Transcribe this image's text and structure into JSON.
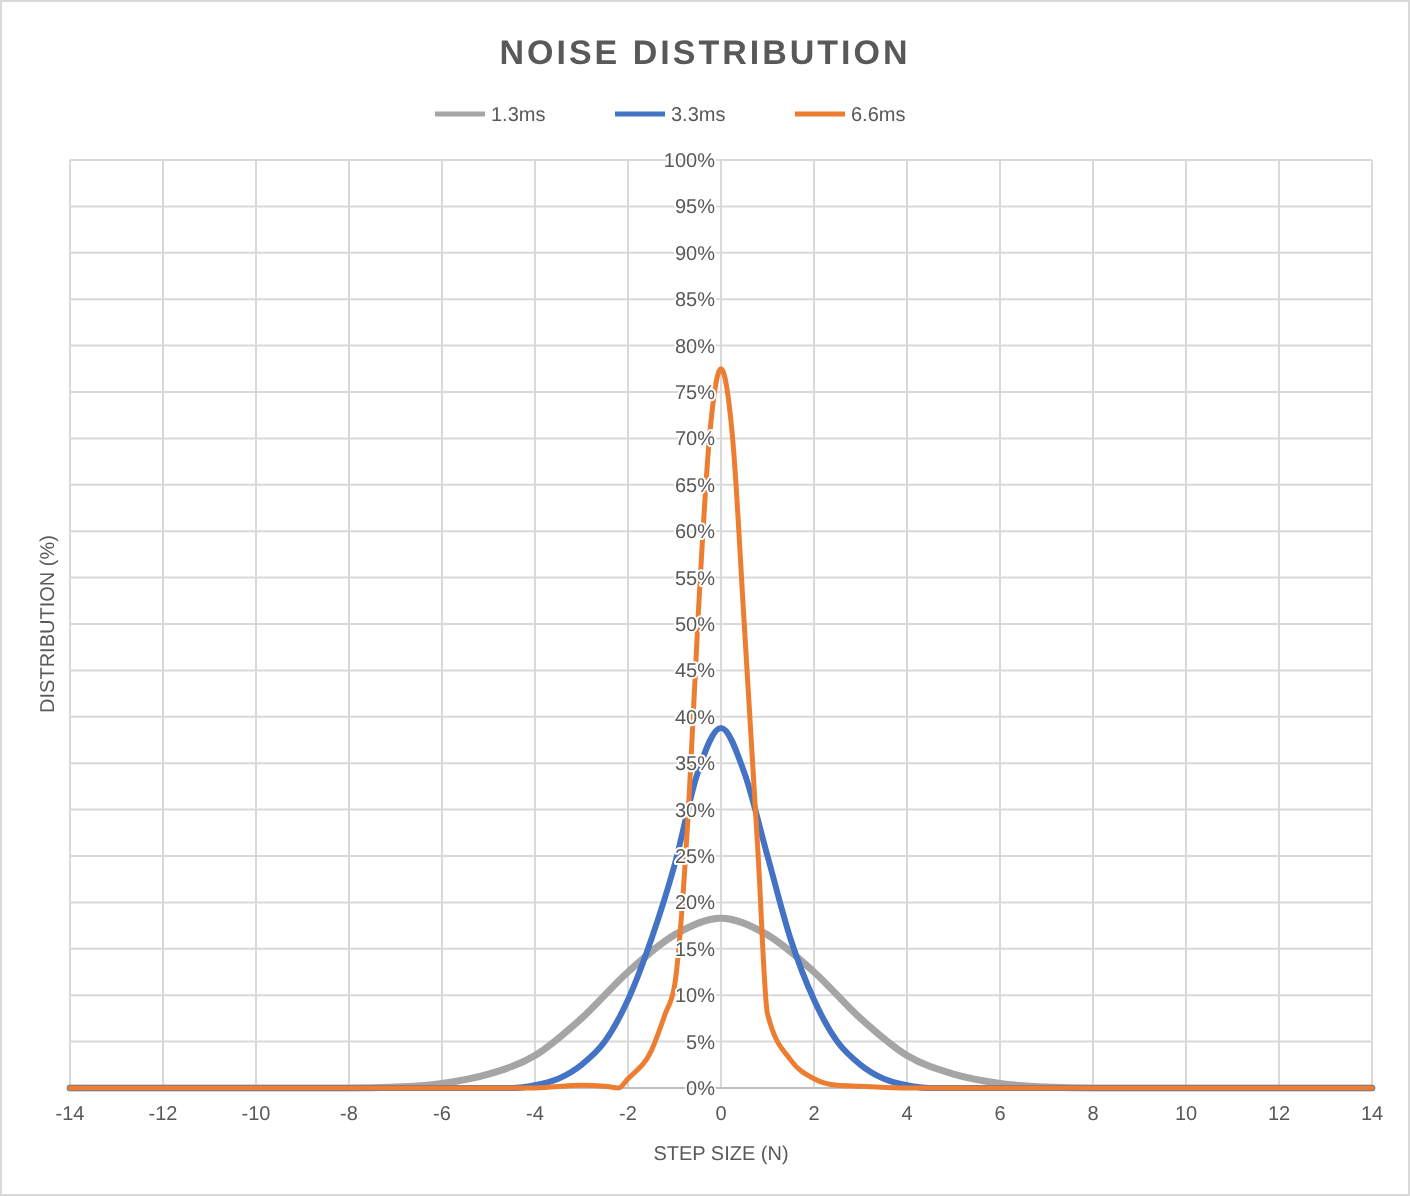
{
  "chart_data": {
    "type": "line",
    "title": "NOISE DISTRIBUTION",
    "xlabel": "STEP SIZE (N)",
    "ylabel": "DISTRIBUTION (%)",
    "xlim": [
      -14,
      14
    ],
    "xticks": [
      -14,
      -12,
      -10,
      -8,
      -6,
      -4,
      -2,
      0,
      2,
      4,
      6,
      8,
      10,
      12,
      14
    ],
    "ylim": [
      0,
      100
    ],
    "yticks": [
      {
        "value": 0,
        "label": "0%"
      },
      {
        "value": 5,
        "label": "5%"
      },
      {
        "value": 10,
        "label": "10%"
      },
      {
        "value": 15,
        "label": "15%"
      },
      {
        "value": 20,
        "label": "20%"
      },
      {
        "value": 25,
        "label": "25%"
      },
      {
        "value": 30,
        "label": "30%"
      },
      {
        "value": 35,
        "label": "35%"
      },
      {
        "value": 40,
        "label": "40%"
      },
      {
        "value": 45,
        "label": "45%"
      },
      {
        "value": 50,
        "label": "50%"
      },
      {
        "value": 55,
        "label": "55%"
      },
      {
        "value": 60,
        "label": "60%"
      },
      {
        "value": 65,
        "label": "65%"
      },
      {
        "value": 70,
        "label": "70%"
      },
      {
        "value": 75,
        "label": "75%"
      },
      {
        "value": 80,
        "label": "80%"
      },
      {
        "value": 85,
        "label": "85%"
      },
      {
        "value": 90,
        "label": "90%"
      },
      {
        "value": 95,
        "label": "95%"
      },
      {
        "value": 100,
        "label": "100%"
      }
    ],
    "grid": true,
    "legend": "top",
    "marker": "none",
    "line_style": "solid",
    "series": [
      {
        "name": "1.3ms",
        "color": "#a5a5a5",
        "x": [
          -14,
          -8,
          -7,
          -6,
          -5,
          -4,
          -3,
          -2,
          -1,
          0,
          1,
          2,
          3,
          4,
          5,
          6,
          7,
          8,
          14
        ],
        "values": [
          0,
          0,
          0.1,
          0.5,
          1.5,
          3.5,
          7.5,
          12.5,
          16.5,
          18.3,
          16.5,
          12.5,
          7.5,
          3.5,
          1.5,
          0.5,
          0.1,
          0,
          0
        ]
      },
      {
        "name": "3.3ms",
        "color": "#4472c4",
        "x": [
          -14,
          -4.5,
          -4,
          -3.5,
          -3,
          -2.5,
          -2,
          -1.5,
          -1,
          -0.5,
          0,
          0.5,
          1,
          1.5,
          2,
          2.5,
          3,
          3.5,
          4,
          4.5,
          14
        ],
        "values": [
          0,
          0,
          0.3,
          1,
          2.5,
          5,
          9.5,
          16,
          24,
          34,
          38.8,
          34,
          25,
          16,
          9.5,
          5,
          2.5,
          1,
          0.3,
          0,
          0
        ]
      },
      {
        "name": "6.6ms",
        "color": "#ed7d31",
        "x": [
          -14,
          -4,
          -3,
          -2.5,
          -2.2,
          -2,
          -1.5,
          -1.2,
          -1,
          -0.7,
          -0.5,
          -0.25,
          0,
          0.25,
          0.5,
          0.8,
          1,
          1.5,
          2,
          2.5,
          3,
          4,
          14
        ],
        "values": [
          0,
          0,
          0.3,
          0.2,
          0,
          1,
          4,
          8,
          11,
          30,
          50,
          70,
          77.5,
          70,
          50,
          25,
          8,
          3,
          1,
          0.3,
          0.2,
          0,
          0
        ]
      }
    ]
  }
}
